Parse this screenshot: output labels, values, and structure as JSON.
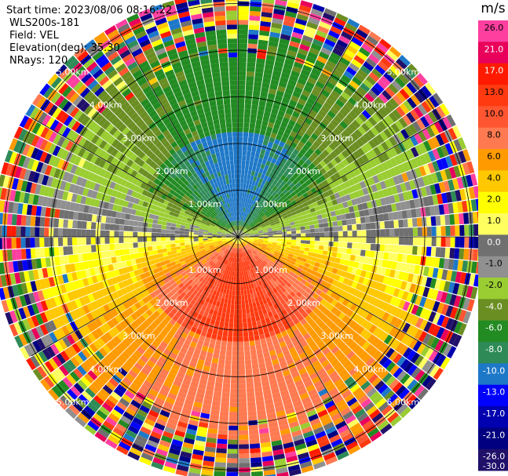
{
  "header": {
    "start_time": "Start time: 2023/08/06 08:16:22",
    "instrument": "WLS200s-181",
    "field": "Field: VEL",
    "elevation": "Elevation(deg): 35.30",
    "nrays": "NRays: 120"
  },
  "colorbar": {
    "unit": "m/s",
    "ticks": [
      "26.0",
      "21.0",
      "17.0",
      "13.0",
      "10.0",
      "8.0",
      "6.0",
      "4.0",
      "2.0",
      "1.0",
      "0.0",
      "-1.0",
      "-2.0",
      "-4.0",
      "-6.0",
      "-8.0",
      "-10.0",
      "-13.0",
      "-17.0",
      "-21.0",
      "-26.0",
      "-30.0"
    ],
    "colors": [
      "#ff3fa0",
      "#e8005a",
      "#ff1a00",
      "#ff3a10",
      "#ff5530",
      "#ff7a50",
      "#ff9a00",
      "#ffc800",
      "#ffff00",
      "#ffff60",
      "#707070",
      "#909090",
      "#9acd32",
      "#6b8e23",
      "#228b22",
      "#2e8b57",
      "#1e78c8",
      "#0000ff",
      "#0000b0",
      "#000080",
      "#20106a"
    ]
  },
  "chart_data": {
    "type": "heatmap",
    "projection": "polar-ppi",
    "field": "VEL",
    "n_rays": 120,
    "elevation_deg": 35.3,
    "range_labels_km": [
      "1.00km",
      "2.00km",
      "3.00km",
      "4.00km",
      "5.00km"
    ],
    "value_range": [
      -30.0,
      26.0
    ],
    "unit": "m/s",
    "pattern": {
      "north_sector_near": "-8.0 to -10.0",
      "north_sector_far": "-4.0 to -6.0",
      "south_sector_near": "10.0 to 13.0",
      "south_sector_far": "6.0 to 8.0",
      "east_west_zero_band": "-1.0 to 0.0",
      "outer_range_noise": "mixed"
    }
  }
}
